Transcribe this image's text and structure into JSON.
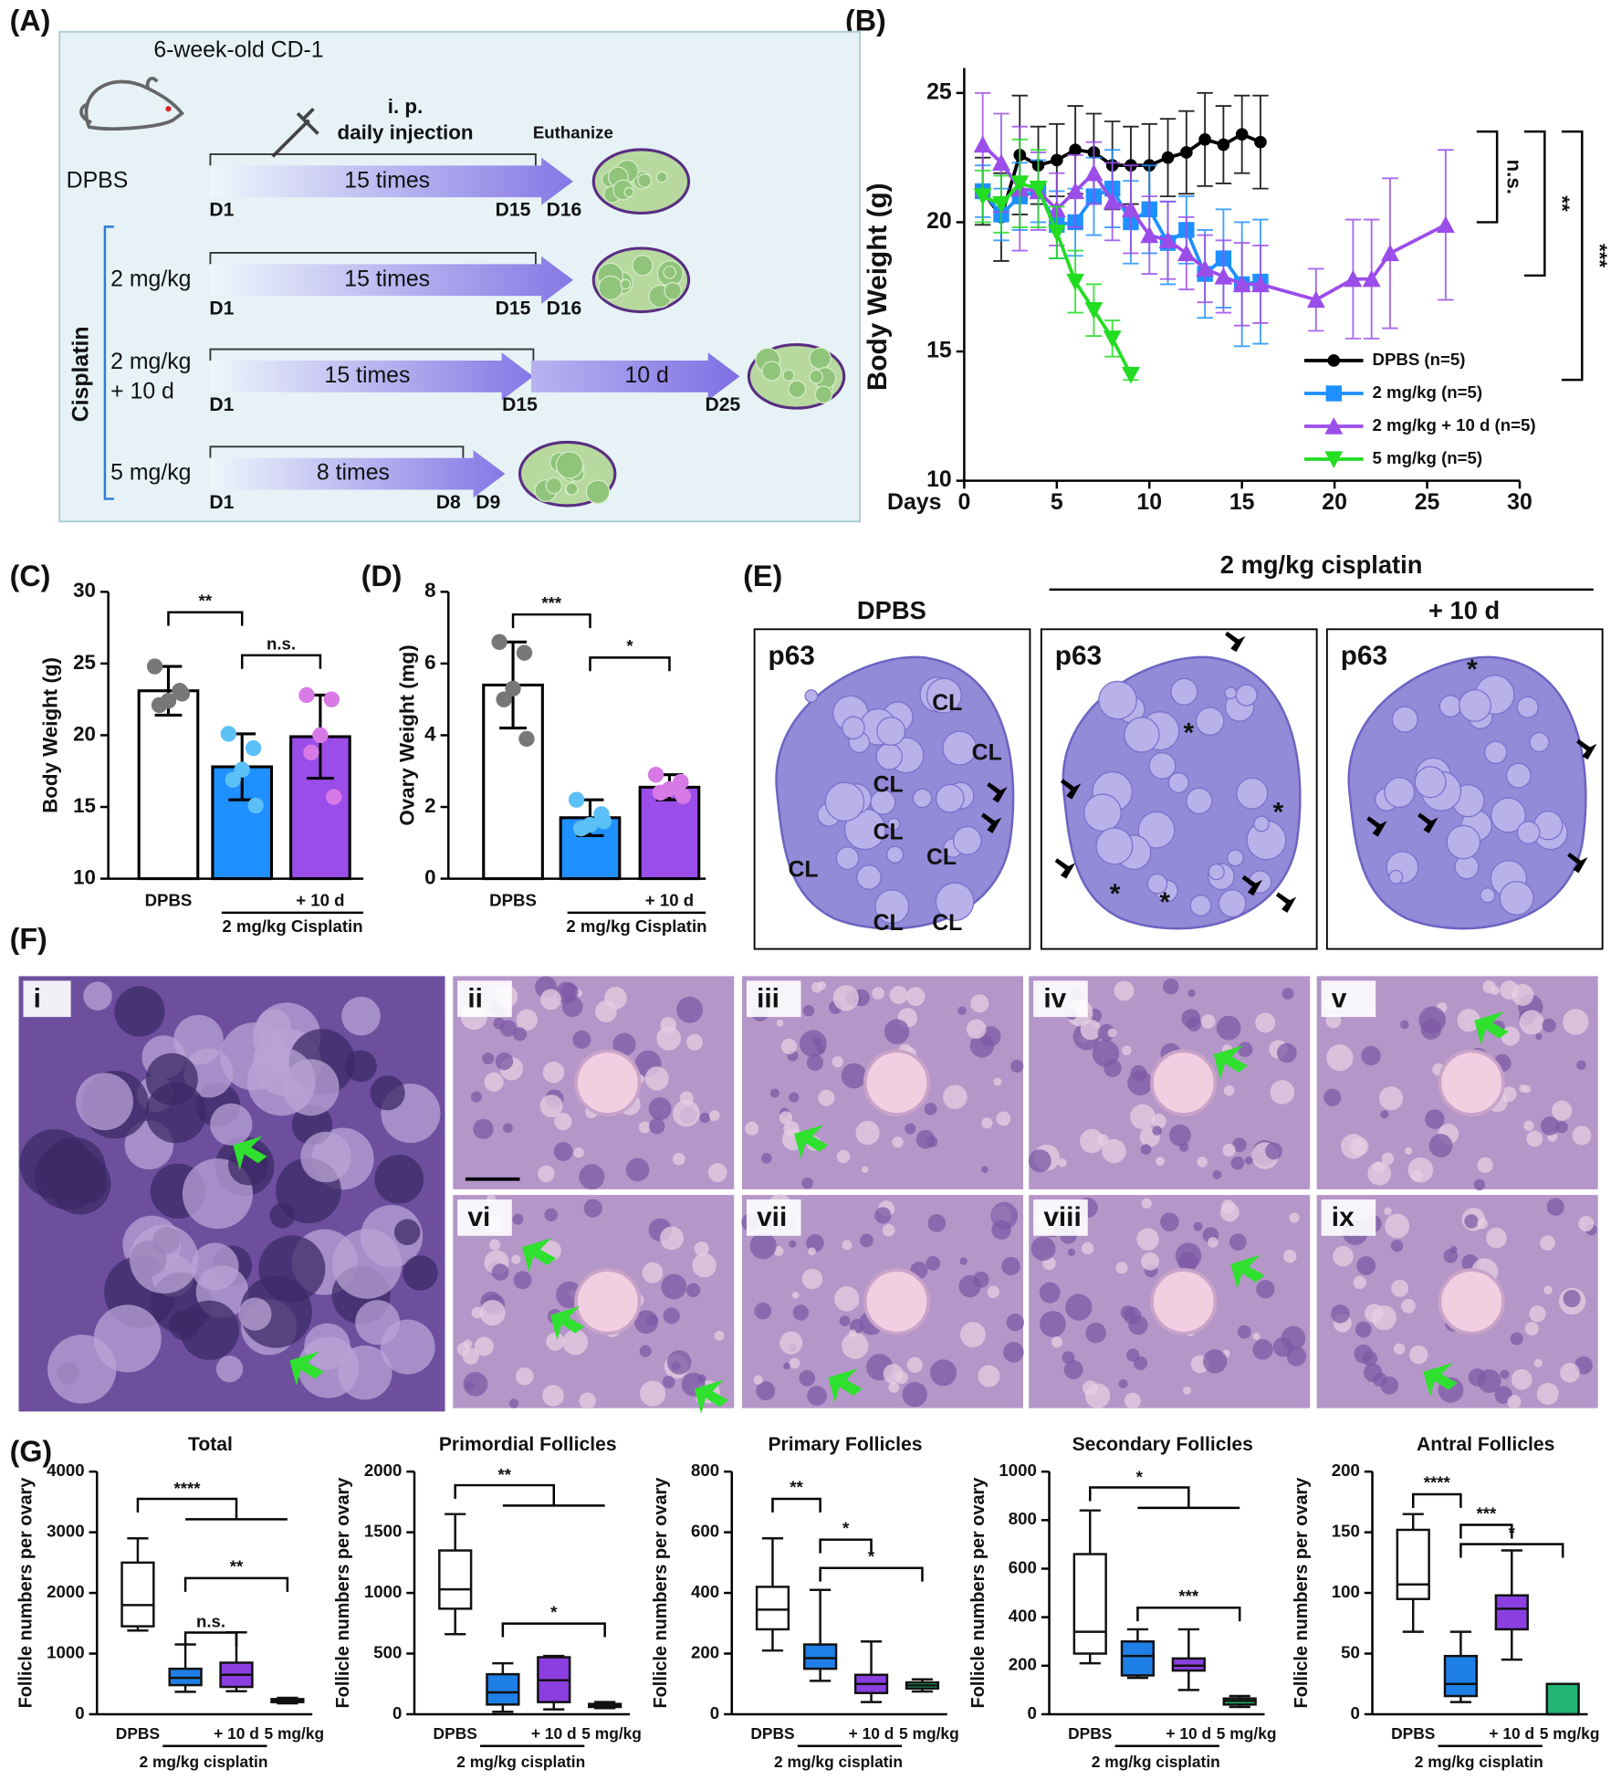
{
  "panels": [
    "(A)",
    "(B)",
    "(C)",
    "(D)",
    "(E)",
    "(F)",
    "(G)"
  ],
  "diagram": {
    "mouse": "6-week-old CD-1",
    "route": "i. p.",
    "schedule": "daily injection",
    "end": "Euthanize",
    "group": "Cisplatin",
    "rows": [
      {
        "label": [
          "DPBS"
        ],
        "times": "15 times",
        "days": [
          "D1",
          "D15",
          "D16"
        ]
      },
      {
        "label": [
          "2 mg/kg"
        ],
        "times": "15 times",
        "days": [
          "D1",
          "D15",
          "D16"
        ]
      },
      {
        "label": [
          "2 mg/kg",
          "+ 10 d"
        ],
        "times": "15 times",
        "extra": "10 d",
        "days": [
          "D1",
          "D15",
          "D25"
        ]
      },
      {
        "label": [
          "5 mg/kg"
        ],
        "times": "8 times",
        "days": [
          "D1",
          "D8",
          "D9"
        ]
      }
    ]
  },
  "ovary_sections": {
    "title": "2 mg/kg cisplatin",
    "panels": [
      {
        "title": "DPBS",
        "stain": "p63",
        "marks": [
          "CL",
          "CL",
          "CL",
          "CL",
          "CL",
          "CL",
          "CL",
          "CL"
        ]
      },
      {
        "stain": "p63",
        "marks": [
          "*",
          "*",
          "*",
          "*"
        ]
      },
      {
        "title": "+ 10 d",
        "stain": "p63",
        "marks": [
          "*"
        ]
      }
    ]
  },
  "histology": {
    "panels": [
      "i",
      "ii",
      "iii",
      "iv",
      "v",
      "vi",
      "vii",
      "viii",
      "ix"
    ]
  },
  "chart_data": [
    {
      "type": "line",
      "x_label": "Days",
      "y_label": "Body Weight (g)",
      "xlim": [
        0,
        30
      ],
      "ylim": [
        10,
        25
      ],
      "xticks": [
        0,
        5,
        10,
        15,
        20,
        25,
        30
      ],
      "yticks": [
        10,
        15,
        20,
        25
      ],
      "series": [
        {
          "name": "DPBS (n=5)",
          "color": "#000000",
          "marker": "circle",
          "x": [
            1,
            2,
            3,
            4,
            5,
            6,
            7,
            8,
            9,
            10,
            11,
            12,
            13,
            14,
            15,
            16
          ],
          "values": [
            21.2,
            20.2,
            22.6,
            22.2,
            22.4,
            22.8,
            22.7,
            22.2,
            22.2,
            22.2,
            22.5,
            22.7,
            23.2,
            23.0,
            23.4,
            23.1
          ],
          "errors": [
            1.3,
            1.7,
            2.3,
            1.5,
            1.4,
            1.7,
            1.5,
            1.7,
            1.5,
            1.6,
            1.5,
            1.6,
            1.8,
            1.5,
            1.5,
            1.8
          ]
        },
        {
          "name": "2 mg/kg (n=5)",
          "color": "#1e90ff",
          "marker": "square",
          "x": [
            1,
            2,
            3,
            4,
            5,
            6,
            7,
            8,
            9,
            10,
            11,
            12,
            13,
            14,
            15,
            16
          ],
          "values": [
            21.2,
            20.3,
            21.0,
            21.2,
            19.9,
            20.0,
            21.0,
            21.3,
            20.0,
            20.5,
            19.2,
            19.7,
            18.0,
            18.6,
            17.6,
            17.7
          ],
          "errors": [
            1.0,
            1.0,
            1.3,
            1.2,
            1.3,
            1.3,
            1.5,
            1.5,
            1.6,
            1.7,
            1.6,
            1.3,
            1.7,
            1.9,
            2.4,
            2.4
          ]
        },
        {
          "name": "2 mg/kg + 10 d (n=5)",
          "color": "#9b4dea",
          "marker": "triangle-up",
          "x": [
            1,
            2,
            3,
            4,
            5,
            6,
            7,
            8,
            9,
            10,
            11,
            12,
            13,
            14,
            15,
            16,
            19,
            21,
            22,
            23,
            26
          ],
          "values": [
            23.0,
            22.3,
            21.3,
            21.2,
            20.5,
            21.2,
            21.9,
            20.8,
            20.5,
            19.5,
            19.3,
            18.8,
            18.2,
            17.9,
            17.6,
            17.6,
            17.0,
            17.8,
            17.8,
            18.8,
            19.9
          ],
          "errors": [
            2.0,
            1.9,
            2.4,
            1.5,
            1.4,
            1.4,
            1.2,
            1.5,
            1.7,
            1.5,
            1.5,
            1.4,
            1.3,
            1.4,
            1.6,
            1.5,
            1.2,
            2.3,
            2.3,
            2.9,
            2.9
          ]
        },
        {
          "name": "5 mg/kg (n=5)",
          "color": "#22dd22",
          "marker": "triangle-down",
          "x": [
            1,
            2,
            3,
            4,
            5,
            6,
            7,
            8,
            9
          ],
          "values": [
            21.0,
            20.7,
            21.5,
            21.3,
            19.6,
            17.7,
            16.6,
            15.5,
            14.1
          ],
          "errors": [
            1.0,
            1.1,
            1.7,
            1.5,
            1.0,
            1.2,
            1.0,
            0.7,
            0.2
          ]
        }
      ],
      "annotations": [
        "n.s.",
        "**",
        "***"
      ]
    },
    {
      "type": "bar",
      "y_label": "Body Weight (g)",
      "categories": [
        "DPBS",
        null,
        "+ 10 d"
      ],
      "group_label": "2 mg/kg Cisplatin",
      "colors": [
        "#ffffff",
        "#1e90ff",
        "#9b4dea"
      ],
      "point_colors": [
        "#777777",
        "#5bc0f5",
        "#d77ae6"
      ],
      "values": [
        23.1,
        17.8,
        19.9
      ],
      "errors": [
        1.7,
        2.3,
        2.9
      ],
      "points": [
        [
          24.8,
          23.1,
          22.4,
          22.1,
          22.9
        ],
        [
          20.1,
          19.1,
          17.6,
          16.9,
          15.1
        ],
        [
          22.8,
          22.5,
          20.0,
          18.8,
          15.7
        ]
      ],
      "ylim": [
        10,
        30
      ],
      "yticks": [
        10,
        15,
        20,
        25,
        30
      ],
      "annotations": [
        "**",
        "n.s."
      ]
    },
    {
      "type": "bar",
      "y_label": "Ovary Weight (mg)",
      "categories": [
        "DPBS",
        null,
        "+ 10 d"
      ],
      "group_label": "2 mg/kg Cisplatin",
      "colors": [
        "#ffffff",
        "#1e90ff",
        "#9b4dea"
      ],
      "point_colors": [
        "#777777",
        "#5bc0f5",
        "#d77ae6"
      ],
      "values": [
        5.4,
        1.7,
        2.55
      ],
      "errors": [
        1.2,
        0.5,
        0.35
      ],
      "points": [
        [
          6.6,
          6.3,
          5.3,
          5.0,
          3.9
        ],
        [
          2.2,
          1.8,
          1.5,
          1.4,
          1.6
        ],
        [
          2.9,
          2.7,
          2.5,
          2.4,
          2.3
        ]
      ],
      "ylim": [
        0,
        8
      ],
      "yticks": [
        0,
        2,
        4,
        6,
        8
      ],
      "annotations": [
        "***",
        "*"
      ]
    },
    {
      "type": "box",
      "title": "Total",
      "y_label": "Follicle numbers per ovary",
      "categories": [
        "DPBS",
        null,
        "+ 10 d",
        "5 mg/kg"
      ],
      "group_label": "2 mg/kg cisplatin",
      "colors": [
        "#ffffff",
        "#1e7fe6",
        "#8b3fe0",
        "#22b573"
      ],
      "boxes": [
        [
          1380,
          1450,
          1800,
          2500,
          2900
        ],
        [
          370,
          480,
          600,
          750,
          1150
        ],
        [
          380,
          450,
          650,
          850,
          1350
        ],
        [
          180,
          200,
          230,
          250,
          270
        ]
      ],
      "ylim": [
        0,
        4000
      ],
      "yticks": [
        0,
        1000,
        2000,
        3000,
        4000
      ],
      "annotations": [
        "****",
        "n.s.",
        "**"
      ]
    },
    {
      "type": "box",
      "title": "Primordial Follicles",
      "y_label": "Follicle numbers per ovary",
      "categories": [
        "DPBS",
        null,
        "+ 10 d",
        "5 mg/kg"
      ],
      "group_label": "2 mg/kg cisplatin",
      "colors": [
        "#ffffff",
        "#1e7fe6",
        "#8b3fe0",
        "#22b573"
      ],
      "boxes": [
        [
          660,
          870,
          1030,
          1350,
          1650
        ],
        [
          20,
          80,
          180,
          330,
          420
        ],
        [
          40,
          100,
          280,
          470,
          480
        ],
        [
          50,
          60,
          75,
          85,
          100
        ]
      ],
      "ylim": [
        0,
        2000
      ],
      "yticks": [
        0,
        500,
        1000,
        1500,
        2000
      ],
      "annotations": [
        "**",
        "*"
      ]
    },
    {
      "type": "box",
      "title": "Primary Follicles",
      "y_label": "Follicle numbers per ovary",
      "categories": [
        "DPBS",
        null,
        "+ 10 d",
        "5 mg/kg"
      ],
      "group_label": "2 mg/kg cisplatin",
      "colors": [
        "#ffffff",
        "#1e7fe6",
        "#8b3fe0",
        "#22b573"
      ],
      "boxes": [
        [
          210,
          280,
          345,
          420,
          580
        ],
        [
          110,
          150,
          185,
          230,
          410
        ],
        [
          40,
          70,
          100,
          130,
          240
        ],
        [
          75,
          85,
          95,
          105,
          115
        ]
      ],
      "ylim": [
        0,
        800
      ],
      "yticks": [
        0,
        200,
        400,
        600,
        800
      ],
      "annotations": [
        "**",
        "*",
        "*"
      ]
    },
    {
      "type": "box",
      "title": "Secondary Follicles",
      "y_label": "Follicle numbers per ovary",
      "categories": [
        "DPBS",
        null,
        "+ 10 d",
        "5 mg/kg"
      ],
      "group_label": "2 mg/kg cisplatin",
      "colors": [
        "#ffffff",
        "#1e7fe6",
        "#8b3fe0",
        "#22b573"
      ],
      "boxes": [
        [
          210,
          250,
          340,
          660,
          840
        ],
        [
          150,
          160,
          240,
          300,
          350
        ],
        [
          100,
          180,
          200,
          230,
          350
        ],
        [
          30,
          40,
          55,
          65,
          75
        ]
      ],
      "ylim": [
        0,
        1000
      ],
      "yticks": [
        0,
        200,
        400,
        600,
        800,
        1000
      ],
      "annotations": [
        "*",
        "***"
      ]
    },
    {
      "type": "box",
      "title": "Antral Follicles",
      "y_label": "Follicle numbers per ovary",
      "categories": [
        "DPBS",
        null,
        "+ 10 d",
        "5 mg/kg"
      ],
      "group_label": "2 mg/kg cisplatin",
      "colors": [
        "#ffffff",
        "#1e7fe6",
        "#8b3fe0",
        "#22b573"
      ],
      "boxes": [
        [
          68,
          95,
          107,
          152,
          165
        ],
        [
          10,
          15,
          25,
          48,
          68
        ],
        [
          45,
          70,
          87,
          98,
          135
        ],
        [
          0,
          0,
          0,
          25,
          25
        ]
      ],
      "ylim": [
        0,
        200
      ],
      "yticks": [
        0,
        50,
        100,
        150,
        200
      ],
      "annotations": [
        "****",
        "***",
        "*"
      ]
    }
  ]
}
